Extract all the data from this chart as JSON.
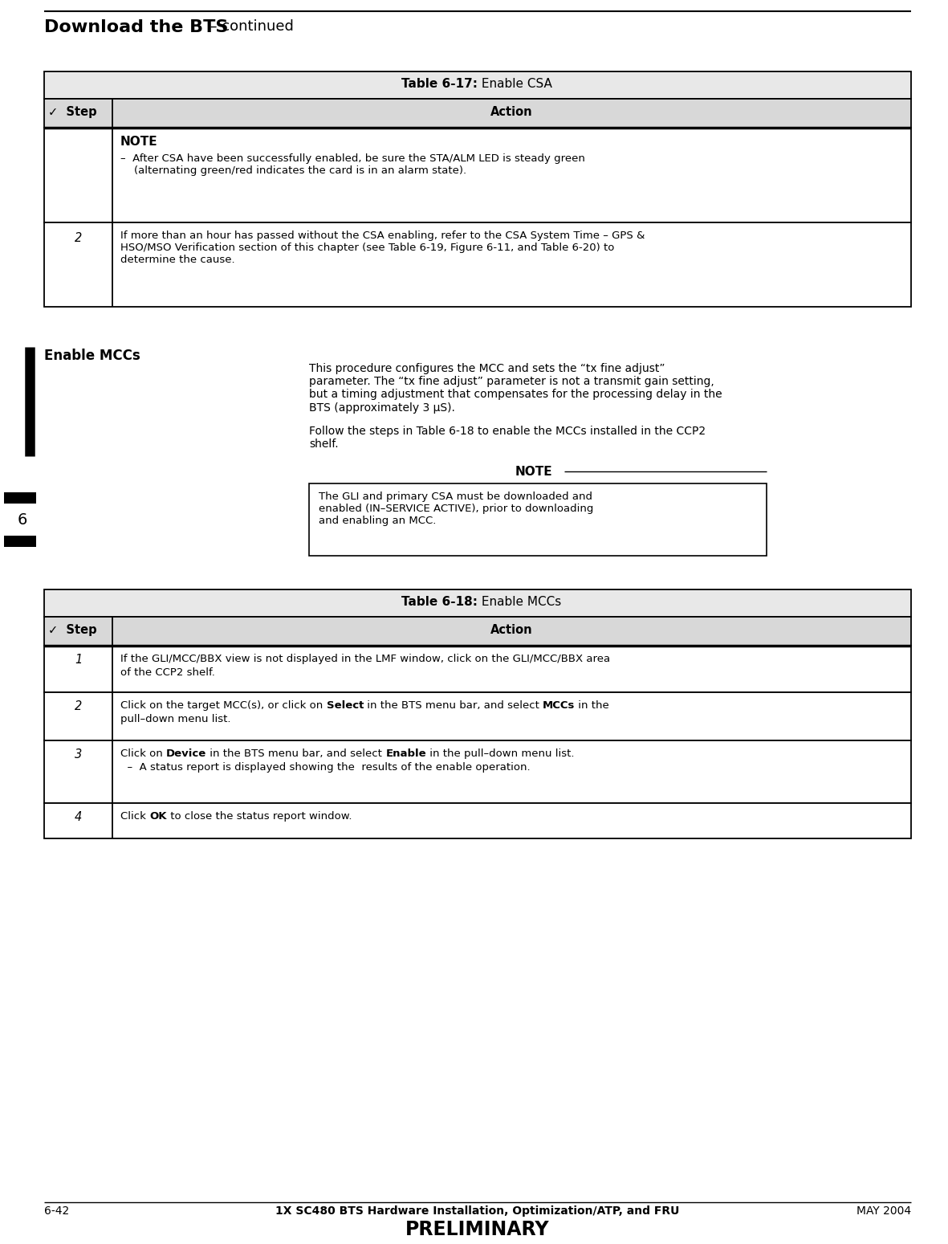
{
  "page_title_bold": "Download the BTS",
  "page_title_regular": "  – continued",
  "table1_title_bold": "Table 6-17:",
  "table1_title_regular": " Enable CSA",
  "table1_col1_header": "✓  Step",
  "table1_col2_header": "Action",
  "table1_row1_note_bold": "NOTE",
  "table1_row1_note_bullet": "–  After CSA have been successfully enabled, be sure the STA/ALM LED is steady green\n    (alternating green/red indicates the card is in an alarm state).",
  "table1_row2_step": "2",
  "table1_row2_action": "If more than an hour has passed without the CSA enabling, refer to the CSA System Time – GPS &\nHSO/MSO Verification section of this chapter (see Table 6-19, Figure 6-11, and Table 6-20) to\ndetermine the cause.",
  "section_heading": "Enable MCCs",
  "para1": "This procedure configures the MCC and sets the “tx fine adjust”\nparameter. The “tx fine adjust” parameter is not a transmit gain setting,\nbut a timing adjustment that compensates for the processing delay in the\nBTS (approximately 3 μS).",
  "para2": "Follow the steps in Table 6-18 to enable the MCCs installed in the CCP2\nshelf.",
  "note_box_title": "NOTE",
  "note_box_text": "The GLI and primary CSA must be downloaded and\nenabled (IN–SERVICE ACTIVE), prior to downloading\nand enabling an MCC.",
  "table2_title_bold": "Table 6-18:",
  "table2_title_regular": " Enable MCCs",
  "table2_col1_header": "✓  Step",
  "table2_col2_header": "Action",
  "footer_left": "6-42",
  "footer_center": "1X SC480 BTS Hardware Installation, Optimization/ATP, and FRU",
  "footer_right": "MAY 2004",
  "footer_preliminary": "PRELIMINARY",
  "bg_color": "#ffffff"
}
